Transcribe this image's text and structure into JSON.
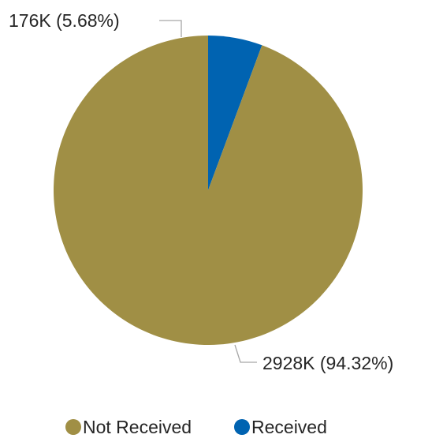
{
  "chart_data": {
    "type": "pie",
    "slices": [
      {
        "label": "Received",
        "value": 176,
        "value_label": "176K (5.68%)",
        "percent": 5.68,
        "color": "#0063b1"
      },
      {
        "label": "Not Received",
        "value": 2928,
        "value_label": "2928K (94.32%)",
        "percent": 94.32,
        "color": "#a08f45"
      }
    ],
    "legend": {
      "position": "bottom",
      "items": [
        {
          "label": "Not Received",
          "color": "#a08f45"
        },
        {
          "label": "Received",
          "color": "#0063b1"
        }
      ]
    },
    "start_angle": "12 o'clock",
    "direction": "clockwise"
  }
}
